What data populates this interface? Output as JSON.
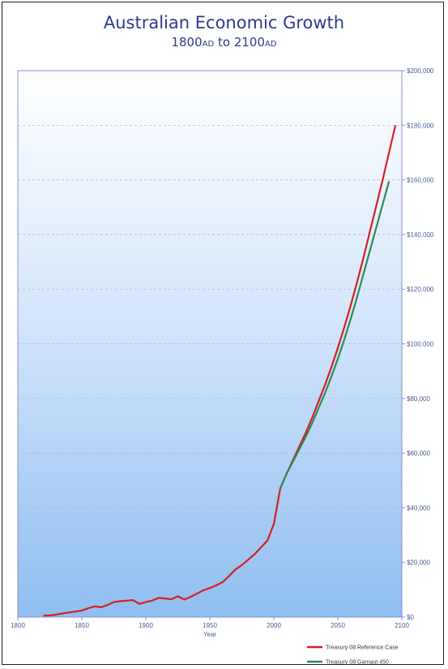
{
  "chart_data": {
    "type": "line",
    "title": "Australian Economic Growth",
    "subtitle": {
      "from_year": "1800",
      "from_suffix": "AD",
      "connector": "to",
      "to_year": "2100",
      "to_suffix": "AD"
    },
    "xlabel": "Year",
    "ylabel": "",
    "xlim": [
      1800,
      2100
    ],
    "ylim": [
      0,
      200000
    ],
    "x_ticks": [
      {
        "value": 1800,
        "label": "1800"
      },
      {
        "value": 1850,
        "label": "1850"
      },
      {
        "value": 1900,
        "label": "1900"
      },
      {
        "value": 1950,
        "label": "1950"
      },
      {
        "value": 2000,
        "label": "2000"
      },
      {
        "value": 2050,
        "label": "2050"
      },
      {
        "value": 2100,
        "label": "2100"
      }
    ],
    "y_ticks": [
      {
        "value": 0,
        "label": "$0"
      },
      {
        "value": 20000,
        "label": "$20,000"
      },
      {
        "value": 40000,
        "label": "$40,000"
      },
      {
        "value": 60000,
        "label": "$60,000"
      },
      {
        "value": 80000,
        "label": "$80,000"
      },
      {
        "value": 100000,
        "label": "$100,000"
      },
      {
        "value": 120000,
        "label": "$120,000"
      },
      {
        "value": 140000,
        "label": "$140,000"
      },
      {
        "value": 160000,
        "label": "$160,000"
      },
      {
        "value": 180000,
        "label": "$180,000"
      },
      {
        "value": 200000,
        "label": "$200,000"
      }
    ],
    "grid": true,
    "legend_position": "bottom-right",
    "series": [
      {
        "name": "Treasury 08 Reference Case",
        "color": "#d42020",
        "points": [
          [
            1820,
            500
          ],
          [
            1825,
            600
          ],
          [
            1830,
            900
          ],
          [
            1835,
            1300
          ],
          [
            1840,
            1700
          ],
          [
            1845,
            2000
          ],
          [
            1850,
            2400
          ],
          [
            1855,
            3200
          ],
          [
            1860,
            3900
          ],
          [
            1865,
            3600
          ],
          [
            1870,
            4400
          ],
          [
            1875,
            5500
          ],
          [
            1880,
            5800
          ],
          [
            1885,
            6000
          ],
          [
            1890,
            6200
          ],
          [
            1895,
            4800
          ],
          [
            1900,
            5500
          ],
          [
            1905,
            6000
          ],
          [
            1910,
            7000
          ],
          [
            1915,
            6800
          ],
          [
            1920,
            6500
          ],
          [
            1925,
            7600
          ],
          [
            1930,
            6400
          ],
          [
            1935,
            7400
          ],
          [
            1940,
            8600
          ],
          [
            1945,
            9800
          ],
          [
            1950,
            10600
          ],
          [
            1955,
            11600
          ],
          [
            1960,
            12800
          ],
          [
            1965,
            15000
          ],
          [
            1970,
            17400
          ],
          [
            1975,
            19000
          ],
          [
            1980,
            21000
          ],
          [
            1985,
            23000
          ],
          [
            1990,
            25500
          ],
          [
            1995,
            28000
          ],
          [
            2000,
            34000
          ],
          [
            2005,
            47000
          ],
          [
            2010,
            52500
          ],
          [
            2015,
            57500
          ],
          [
            2020,
            62500
          ],
          [
            2025,
            67500
          ],
          [
            2030,
            73000
          ],
          [
            2035,
            79000
          ],
          [
            2040,
            85000
          ],
          [
            2045,
            91500
          ],
          [
            2050,
            98500
          ],
          [
            2055,
            106000
          ],
          [
            2060,
            114000
          ],
          [
            2065,
            122500
          ],
          [
            2070,
            131500
          ],
          [
            2075,
            141000
          ],
          [
            2080,
            150500
          ],
          [
            2085,
            160000
          ],
          [
            2090,
            170000
          ],
          [
            2095,
            180000
          ]
        ]
      },
      {
        "name": "Treasury 08 Garnaut 450",
        "color": "#2e8b57",
        "points": [
          [
            2005,
            47000
          ],
          [
            2010,
            52500
          ],
          [
            2015,
            57000
          ],
          [
            2020,
            61500
          ],
          [
            2025,
            66000
          ],
          [
            2030,
            71000
          ],
          [
            2035,
            76500
          ],
          [
            2040,
            82000
          ],
          [
            2045,
            88000
          ],
          [
            2050,
            94500
          ],
          [
            2055,
            101500
          ],
          [
            2060,
            109000
          ],
          [
            2065,
            117000
          ],
          [
            2070,
            125500
          ],
          [
            2075,
            134000
          ],
          [
            2080,
            142500
          ],
          [
            2085,
            151000
          ],
          [
            2090,
            159500
          ]
        ]
      }
    ]
  }
}
